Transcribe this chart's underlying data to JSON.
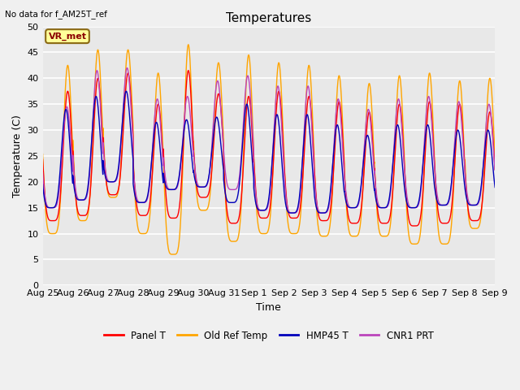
{
  "title": "Temperatures",
  "xlabel": "Time",
  "ylabel": "Temperature (C)",
  "top_left_text": "No data for f_AM25T_ref",
  "annotation_text": "VR_met",
  "ylim": [
    0,
    50
  ],
  "yticks": [
    0,
    5,
    10,
    15,
    20,
    25,
    30,
    35,
    40,
    45,
    50
  ],
  "n_days": 15,
  "series_colors": {
    "Panel T": "#ff0000",
    "Old Ref Temp": "#ffa500",
    "HMP45 T": "#0000bb",
    "CNR1 PRT": "#bb44bb"
  },
  "legend_labels": [
    "Panel T",
    "Old Ref Temp",
    "HMP45 T",
    "CNR1 PRT"
  ],
  "background_color": "#e8e8e8",
  "fig_background_color": "#f0f0f0",
  "grid_color": "#ffffff",
  "title_fontsize": 11,
  "label_fontsize": 9,
  "tick_fontsize": 8,
  "line_width": 1.0,
  "x_tick_labels": [
    "Aug 25",
    "Aug 26",
    "Aug 27",
    "Aug 28",
    "Aug 29",
    "Aug 30",
    "Aug 31",
    "Sep 1",
    "Sep 2",
    "Sep 3",
    "Sep 4",
    "Sep 5",
    "Sep 6",
    "Sep 7",
    "Sep 8",
    "Sep 9"
  ],
  "daily_max_old_ref": [
    42.5,
    45.5,
    45.5,
    41.0,
    46.5,
    43.0,
    44.5,
    43.0,
    42.5,
    40.5,
    39.0,
    40.5,
    41.0,
    39.5,
    40.0
  ],
  "daily_max_panel": [
    37.5,
    40.0,
    41.0,
    35.0,
    41.5,
    37.0,
    36.5,
    37.5,
    36.5,
    35.5,
    33.5,
    35.0,
    35.5,
    35.0,
    33.5
  ],
  "daily_max_hmp": [
    34.0,
    36.5,
    37.5,
    31.5,
    32.0,
    32.5,
    35.0,
    33.0,
    33.0,
    31.0,
    29.0,
    31.0,
    31.0,
    30.0,
    30.0
  ],
  "daily_max_cnr1": [
    34.5,
    41.5,
    42.0,
    36.0,
    36.5,
    39.5,
    40.5,
    38.5,
    38.5,
    36.0,
    34.0,
    36.0,
    36.5,
    35.5,
    35.0
  ],
  "daily_min_old_ref": [
    10.0,
    12.5,
    17.0,
    10.0,
    6.0,
    14.5,
    8.5,
    10.0,
    10.0,
    9.5,
    9.5,
    9.5,
    8.0,
    8.0,
    11.0
  ],
  "daily_min_panel": [
    12.5,
    13.5,
    17.5,
    13.5,
    13.0,
    17.0,
    12.0,
    13.0,
    13.0,
    12.5,
    12.0,
    12.0,
    11.5,
    12.0,
    12.5
  ],
  "daily_min_hmp": [
    15.0,
    16.5,
    20.0,
    16.0,
    18.5,
    19.0,
    16.0,
    14.5,
    14.0,
    14.0,
    15.0,
    15.0,
    15.0,
    15.5,
    15.5
  ],
  "daily_min_cnr1": [
    15.0,
    16.5,
    20.0,
    16.0,
    18.5,
    19.0,
    18.5,
    14.5,
    14.0,
    14.0,
    15.0,
    15.0,
    15.0,
    15.5,
    15.5
  ],
  "peak_hour_old_ref": 0.58,
  "peak_hour_panel": 0.58,
  "peak_hour_hmp": 0.52,
  "peak_hour_cnr1": 0.55,
  "sharpness": 2.5
}
